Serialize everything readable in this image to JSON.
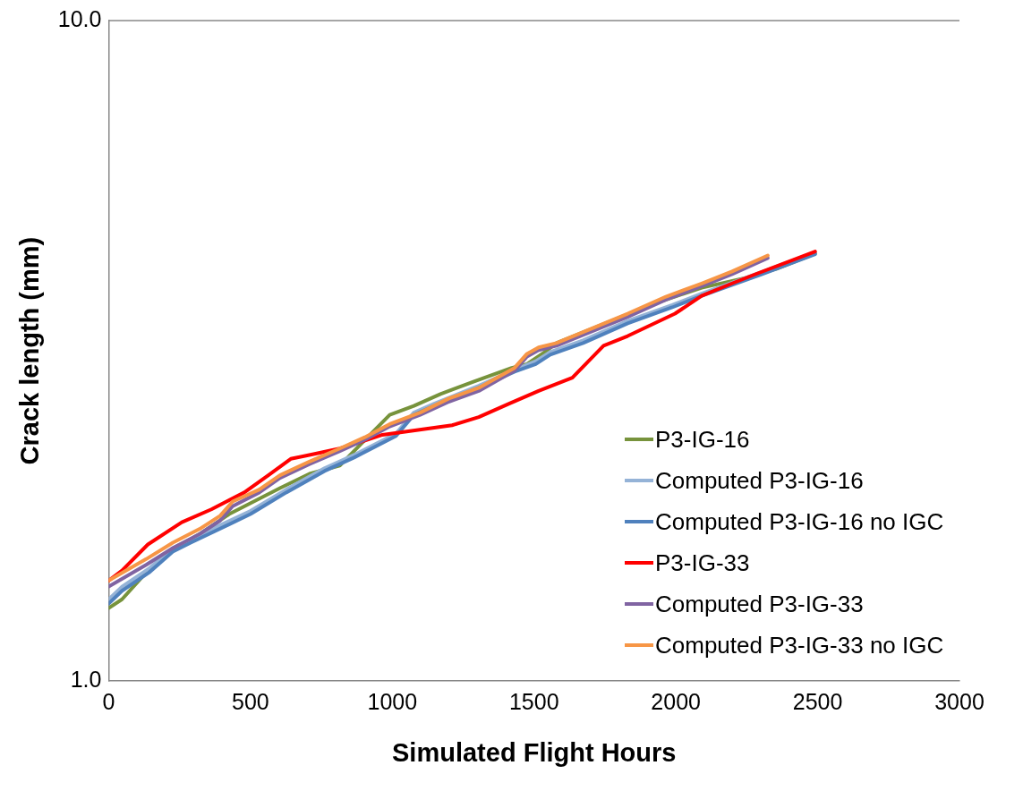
{
  "chart_data": {
    "type": "line",
    "xlabel": "Simulated Flight Hours",
    "ylabel": "Crack length (mm)",
    "log": "y",
    "xlim": [
      0,
      3000
    ],
    "xticks": [
      0,
      500,
      1000,
      1500,
      2000,
      2500,
      3000
    ],
    "ylim": [
      1,
      10
    ],
    "yticks": [
      {
        "value": 1,
        "label": "1.0"
      },
      {
        "value": 10,
        "label": "10.0"
      }
    ],
    "grid": false,
    "legend": "right",
    "marker": "none",
    "line_style": "solid",
    "series": [
      {
        "name": "P3-IG-16",
        "color": "#77933c",
        "x": [
          0,
          47,
          132,
          226,
          321,
          425,
          604,
          708,
          815,
          896,
          991,
          1076,
          1170,
          1286,
          1421,
          1475,
          1538,
          1579,
          1830,
          1956,
          2091,
          2248,
          2355,
          2491
        ],
        "values": [
          1.29,
          1.33,
          1.46,
          1.58,
          1.67,
          1.79,
          1.96,
          2.06,
          2.12,
          2.3,
          2.53,
          2.61,
          2.72,
          2.84,
          2.98,
          3.02,
          3.15,
          3.25,
          3.59,
          3.77,
          3.94,
          4.08,
          4.21,
          4.44
        ]
      },
      {
        "name": "Computed P3-IG-16",
        "color": "#95b3d7",
        "x": [
          0,
          47,
          142,
          226,
          289,
          500,
          626,
          761,
          865,
          1013,
          1076,
          1148,
          1305,
          1431,
          1506,
          1557,
          1673,
          1830,
          1987,
          2091,
          2302,
          2491
        ],
        "values": [
          1.33,
          1.39,
          1.48,
          1.59,
          1.64,
          1.81,
          1.95,
          2.1,
          2.2,
          2.37,
          2.55,
          2.63,
          2.8,
          2.96,
          3.05,
          3.15,
          3.28,
          3.51,
          3.71,
          3.86,
          4.16,
          4.46
        ]
      },
      {
        "name": "Computed P3-IG-16 no IGC",
        "color": "#4f81bd",
        "x": [
          0,
          47,
          142,
          226,
          289,
          500,
          626,
          761,
          865,
          1013,
          1076,
          1148,
          1305,
          1431,
          1506,
          1557,
          1673,
          1830,
          1987,
          2091,
          2302,
          2491
        ],
        "values": [
          1.31,
          1.37,
          1.46,
          1.57,
          1.62,
          1.79,
          1.93,
          2.08,
          2.18,
          2.35,
          2.53,
          2.61,
          2.78,
          2.94,
          3.02,
          3.12,
          3.25,
          3.48,
          3.68,
          3.83,
          4.13,
          4.43
        ]
      },
      {
        "name": "P3-IG-33",
        "color": "#ff0000",
        "x": [
          0,
          47,
          138,
          258,
          362,
          478,
          563,
          642,
          730,
          815,
          887,
          965,
          1211,
          1305,
          1412,
          1516,
          1635,
          1745,
          1830,
          1997,
          2091,
          2198,
          2280,
          2491
        ],
        "values": [
          1.42,
          1.47,
          1.61,
          1.74,
          1.82,
          1.93,
          2.05,
          2.17,
          2.21,
          2.25,
          2.3,
          2.36,
          2.44,
          2.51,
          2.63,
          2.75,
          2.88,
          3.22,
          3.33,
          3.6,
          3.83,
          4.0,
          4.13,
          4.47
        ]
      },
      {
        "name": "Computed P3-IG-33",
        "color": "#8064a2",
        "x": [
          0,
          132,
          226,
          321,
          393,
          437,
          531,
          604,
          708,
          815,
          903,
          991,
          1098,
          1201,
          1305,
          1431,
          1475,
          1516,
          1579,
          1830,
          1965,
          2091,
          2198,
          2324
        ],
        "values": [
          1.39,
          1.5,
          1.59,
          1.67,
          1.75,
          1.84,
          1.93,
          2.03,
          2.13,
          2.23,
          2.32,
          2.43,
          2.53,
          2.65,
          2.75,
          2.95,
          3.1,
          3.17,
          3.22,
          3.56,
          3.78,
          3.96,
          4.13,
          4.37
        ]
      },
      {
        "name": "Computed P3-IG-33 no IGC",
        "color": "#f79646",
        "x": [
          0,
          132,
          226,
          321,
          393,
          437,
          531,
          604,
          708,
          815,
          903,
          991,
          1098,
          1201,
          1305,
          1431,
          1475,
          1516,
          1579,
          1830,
          1965,
          2091,
          2198,
          2324
        ],
        "values": [
          1.42,
          1.53,
          1.62,
          1.7,
          1.78,
          1.87,
          1.95,
          2.05,
          2.15,
          2.25,
          2.34,
          2.45,
          2.55,
          2.68,
          2.78,
          2.98,
          3.13,
          3.2,
          3.25,
          3.6,
          3.82,
          4.0,
          4.17,
          4.41
        ]
      }
    ]
  }
}
